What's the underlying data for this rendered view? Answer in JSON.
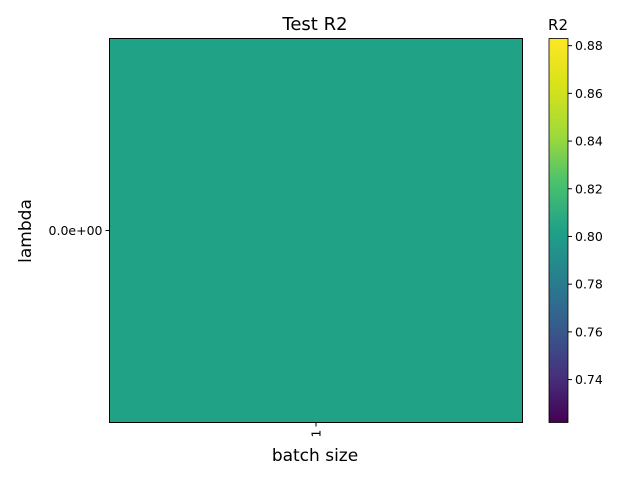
{
  "chart_data": {
    "type": "heatmap",
    "title": "Test R2",
    "xlabel": "batch size",
    "ylabel": "lambda",
    "x_categories": [
      "1"
    ],
    "y_categories": [
      "0.0e+00"
    ],
    "values": [
      [
        0.803
      ]
    ],
    "colorbar": {
      "label": "R2",
      "colormap": "viridis",
      "range": [
        0.722,
        0.883
      ],
      "ticks": [
        "0.74",
        "0.76",
        "0.78",
        "0.80",
        "0.82",
        "0.84",
        "0.86",
        "0.88"
      ]
    },
    "grid": false
  }
}
